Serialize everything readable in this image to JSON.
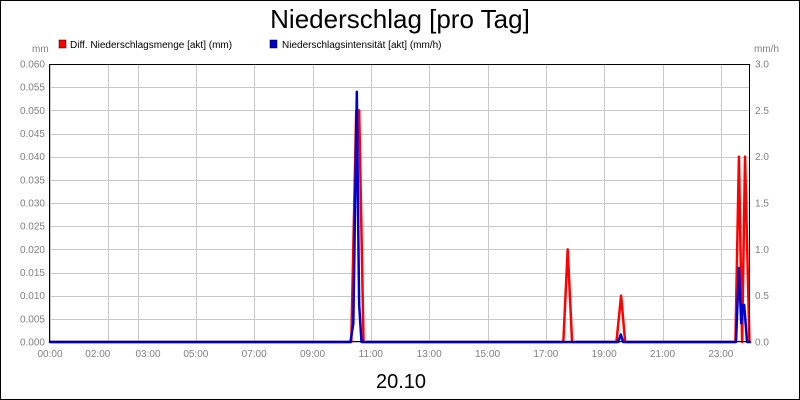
{
  "chart_data": {
    "type": "line",
    "title": "Niederschlag [pro Tag]",
    "date_label": "20.10",
    "left_unit": "mm",
    "right_unit": "mm/h",
    "x_ticks": [
      "00:00",
      "02:00",
      "03:00",
      "05:00",
      "07:00",
      "09:00",
      "11:00",
      "13:00",
      "15:00",
      "17:00",
      "19:00",
      "21:00",
      "23:00"
    ],
    "x_range_hours": [
      0,
      24
    ],
    "y_left": {
      "range": [
        0,
        0.06
      ],
      "ticks": [
        "0.000",
        "0.005",
        "0.010",
        "0.015",
        "0.020",
        "0.025",
        "0.030",
        "0.035",
        "0.040",
        "0.045",
        "0.050",
        "0.055",
        "0.060"
      ]
    },
    "y_right": {
      "range": [
        0,
        3.0
      ],
      "ticks": [
        "0.0",
        "0.5",
        "1.0",
        "1.5",
        "2.0",
        "2.5",
        "3.0"
      ]
    },
    "grid": true,
    "legend_position": "top",
    "series": [
      {
        "name": "Diff. Niederschlagsmenge [akt] (mm)",
        "color": "#ff0000",
        "axis": "left",
        "x_hours": [
          0,
          10.33,
          10.5,
          10.6,
          10.75,
          17.6,
          17.75,
          17.9,
          19.42,
          19.58,
          19.72,
          23.5,
          23.62,
          23.73,
          23.83,
          23.98,
          24
        ],
        "values": [
          0,
          0,
          0.05,
          0.05,
          0,
          0,
          0.02,
          0,
          0,
          0.01,
          0,
          0,
          0.04,
          0,
          0.04,
          0,
          0
        ]
      },
      {
        "name": "Niederschlagsintensität [akt] (mm/h)",
        "color": "#0000cc",
        "axis": "right",
        "x_hours": [
          0,
          10.3,
          10.4,
          10.52,
          10.58,
          10.6,
          10.68,
          19.48,
          19.57,
          19.65,
          23.52,
          23.62,
          23.7,
          23.75,
          23.8,
          23.9,
          24
        ],
        "values": [
          0,
          0,
          0.2,
          2.7,
          0.9,
          0.4,
          0,
          0,
          0.08,
          0,
          0,
          0.8,
          0.2,
          0.4,
          0.4,
          0,
          0
        ]
      }
    ]
  }
}
